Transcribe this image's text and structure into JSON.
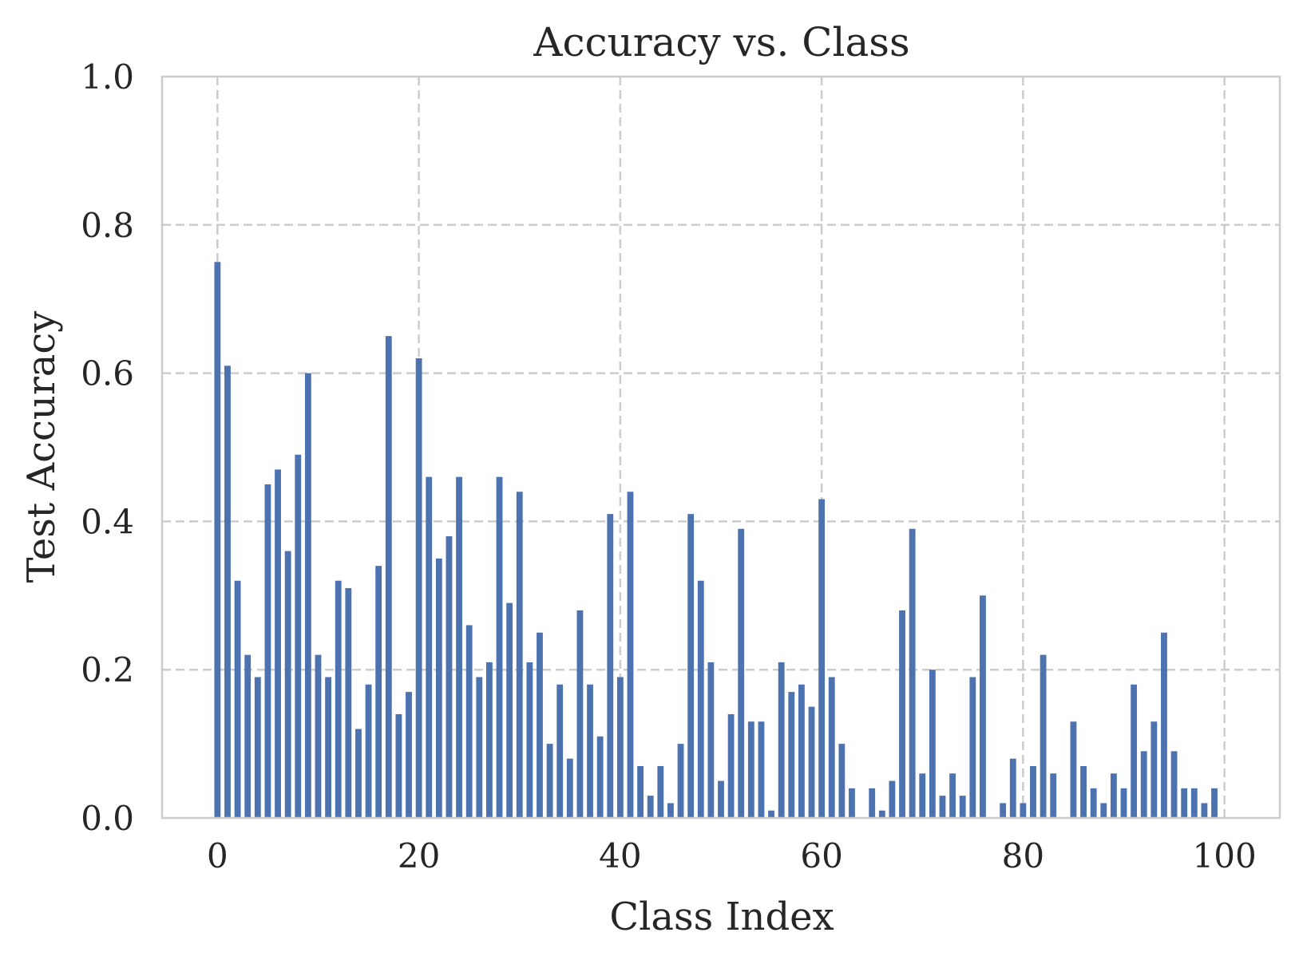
{
  "chart_data": {
    "type": "bar",
    "title": "Accuracy vs. Class",
    "xlabel": "Class Index",
    "ylabel": "Test Accuracy",
    "xlim": [
      -5.5,
      105.5
    ],
    "ylim": [
      0,
      1
    ],
    "xticks": [
      0,
      20,
      40,
      60,
      80,
      100
    ],
    "yticks": [
      0.0,
      0.2,
      0.4,
      0.6,
      0.8,
      1.0
    ],
    "xtick_labels": [
      "0",
      "20",
      "40",
      "60",
      "80",
      "100"
    ],
    "ytick_labels": [
      "0.0",
      "0.2",
      "0.4",
      "0.6",
      "0.8",
      "1.0"
    ],
    "grid": true,
    "bar_color": "#4c72b0",
    "grid_color": "#cccccc",
    "categories": [
      0,
      1,
      2,
      3,
      4,
      5,
      6,
      7,
      8,
      9,
      10,
      11,
      12,
      13,
      14,
      15,
      16,
      17,
      18,
      19,
      20,
      21,
      22,
      23,
      24,
      25,
      26,
      27,
      28,
      29,
      30,
      31,
      32,
      33,
      34,
      35,
      36,
      37,
      38,
      39,
      40,
      41,
      42,
      43,
      44,
      45,
      46,
      47,
      48,
      49,
      50,
      51,
      52,
      53,
      54,
      55,
      56,
      57,
      58,
      59,
      60,
      61,
      62,
      63,
      64,
      65,
      66,
      67,
      68,
      69,
      70,
      71,
      72,
      73,
      74,
      75,
      76,
      77,
      78,
      79,
      80,
      81,
      82,
      83,
      84,
      85,
      86,
      87,
      88,
      89,
      90,
      91,
      92,
      93,
      94,
      95,
      96,
      97,
      98,
      99
    ],
    "values": [
      0.75,
      0.61,
      0.32,
      0.22,
      0.19,
      0.45,
      0.47,
      0.36,
      0.49,
      0.6,
      0.22,
      0.19,
      0.32,
      0.31,
      0.12,
      0.18,
      0.34,
      0.65,
      0.14,
      0.17,
      0.62,
      0.46,
      0.35,
      0.38,
      0.46,
      0.26,
      0.19,
      0.21,
      0.46,
      0.29,
      0.44,
      0.21,
      0.25,
      0.1,
      0.18,
      0.08,
      0.28,
      0.18,
      0.11,
      0.41,
      0.19,
      0.44,
      0.07,
      0.03,
      0.07,
      0.02,
      0.1,
      0.41,
      0.32,
      0.21,
      0.05,
      0.14,
      0.39,
      0.13,
      0.13,
      0.01,
      0.21,
      0.17,
      0.18,
      0.15,
      0.43,
      0.19,
      0.1,
      0.04,
      0.0,
      0.04,
      0.01,
      0.05,
      0.28,
      0.39,
      0.06,
      0.2,
      0.03,
      0.06,
      0.03,
      0.19,
      0.3,
      0.0,
      0.02,
      0.08,
      0.02,
      0.07,
      0.22,
      0.06,
      0.0,
      0.13,
      0.07,
      0.04,
      0.02,
      0.06,
      0.04,
      0.18,
      0.09,
      0.13,
      0.25,
      0.09,
      0.04,
      0.04,
      0.02,
      0.04
    ]
  }
}
